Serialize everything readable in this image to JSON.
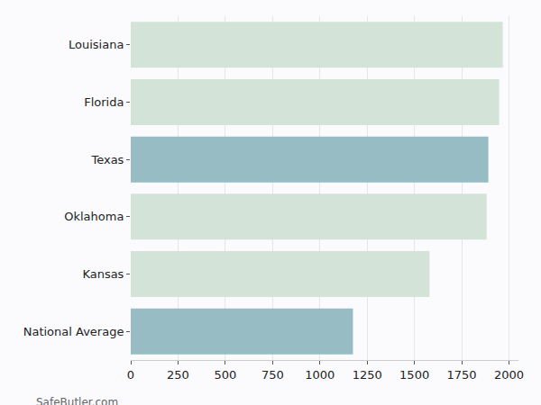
{
  "chart_data": {
    "type": "bar",
    "orientation": "horizontal",
    "categories": [
      "Louisiana",
      "Florida",
      "Texas",
      "Oklahoma",
      "Kansas",
      "National Average"
    ],
    "values": [
      1967,
      1948,
      1891,
      1882,
      1580,
      1175
    ],
    "colors": [
      "#d4e3d8",
      "#d4e3d8",
      "#97bcc4",
      "#d4e3d8",
      "#d4e3d8",
      "#97bcc4"
    ],
    "xlim": [
      0,
      2050
    ],
    "xticks": [
      0,
      250,
      500,
      750,
      1000,
      1250,
      1500,
      1750,
      2000
    ],
    "grid": true,
    "annotations": [
      "SafeButler.com"
    ]
  }
}
